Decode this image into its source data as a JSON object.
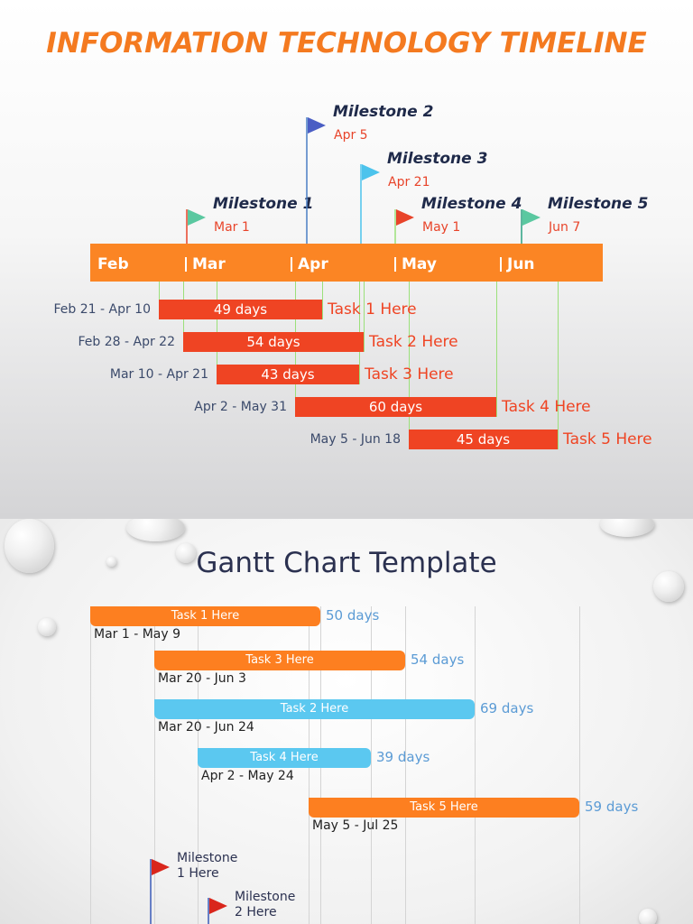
{
  "slide1": {
    "title": "INFORMATION TECHNOLOGY TIMELINE",
    "months": [
      "Feb",
      "Mar",
      "Apr",
      "May",
      "Jun"
    ],
    "milestones": [
      {
        "name": "Milestone 1",
        "date": "Mar 1"
      },
      {
        "name": "Milestone 2",
        "date": "Apr 5"
      },
      {
        "name": "Milestone 3",
        "date": "Apr 21"
      },
      {
        "name": "Milestone 4",
        "date": "May 1"
      },
      {
        "name": "Milestone 5",
        "date": "Jun 7"
      }
    ],
    "tasks": [
      {
        "range": "Feb 21 - Apr 10",
        "duration": "49 days",
        "name": "Task 1 Here"
      },
      {
        "range": "Feb 28 - Apr 22",
        "duration": "54 days",
        "name": "Task 2 Here"
      },
      {
        "range": "Mar 10 - Apr 21",
        "duration": "43 days",
        "name": "Task 3 Here"
      },
      {
        "range": "Apr 2 - May 31",
        "duration": "60 days",
        "name": "Task 4 Here"
      },
      {
        "range": "May 5 - Jun 18",
        "duration": "45 days",
        "name": "Task 5 Here"
      }
    ]
  },
  "slide2": {
    "title": "Gantt Chart Template",
    "tasks": [
      {
        "name": "Task 1 Here",
        "duration": "50 days",
        "range": "Mar 1 - May 9"
      },
      {
        "name": "Task 3 Here",
        "duration": "54 days",
        "range": "Mar 20 - Jun 3"
      },
      {
        "name": "Task 2 Here",
        "duration": "69 days",
        "range": "Mar 20 - Jun 24"
      },
      {
        "name": "Task 4 Here",
        "duration": "39 days",
        "range": "Apr 2 - May 24"
      },
      {
        "name": "Task 5 Here",
        "duration": "59 days",
        "range": "May 5 - Jul 25"
      }
    ],
    "milestones": [
      {
        "lines": [
          "Milestone",
          "1  Here"
        ]
      },
      {
        "lines": [
          "Milestone",
          "2  Here"
        ]
      }
    ]
  }
}
